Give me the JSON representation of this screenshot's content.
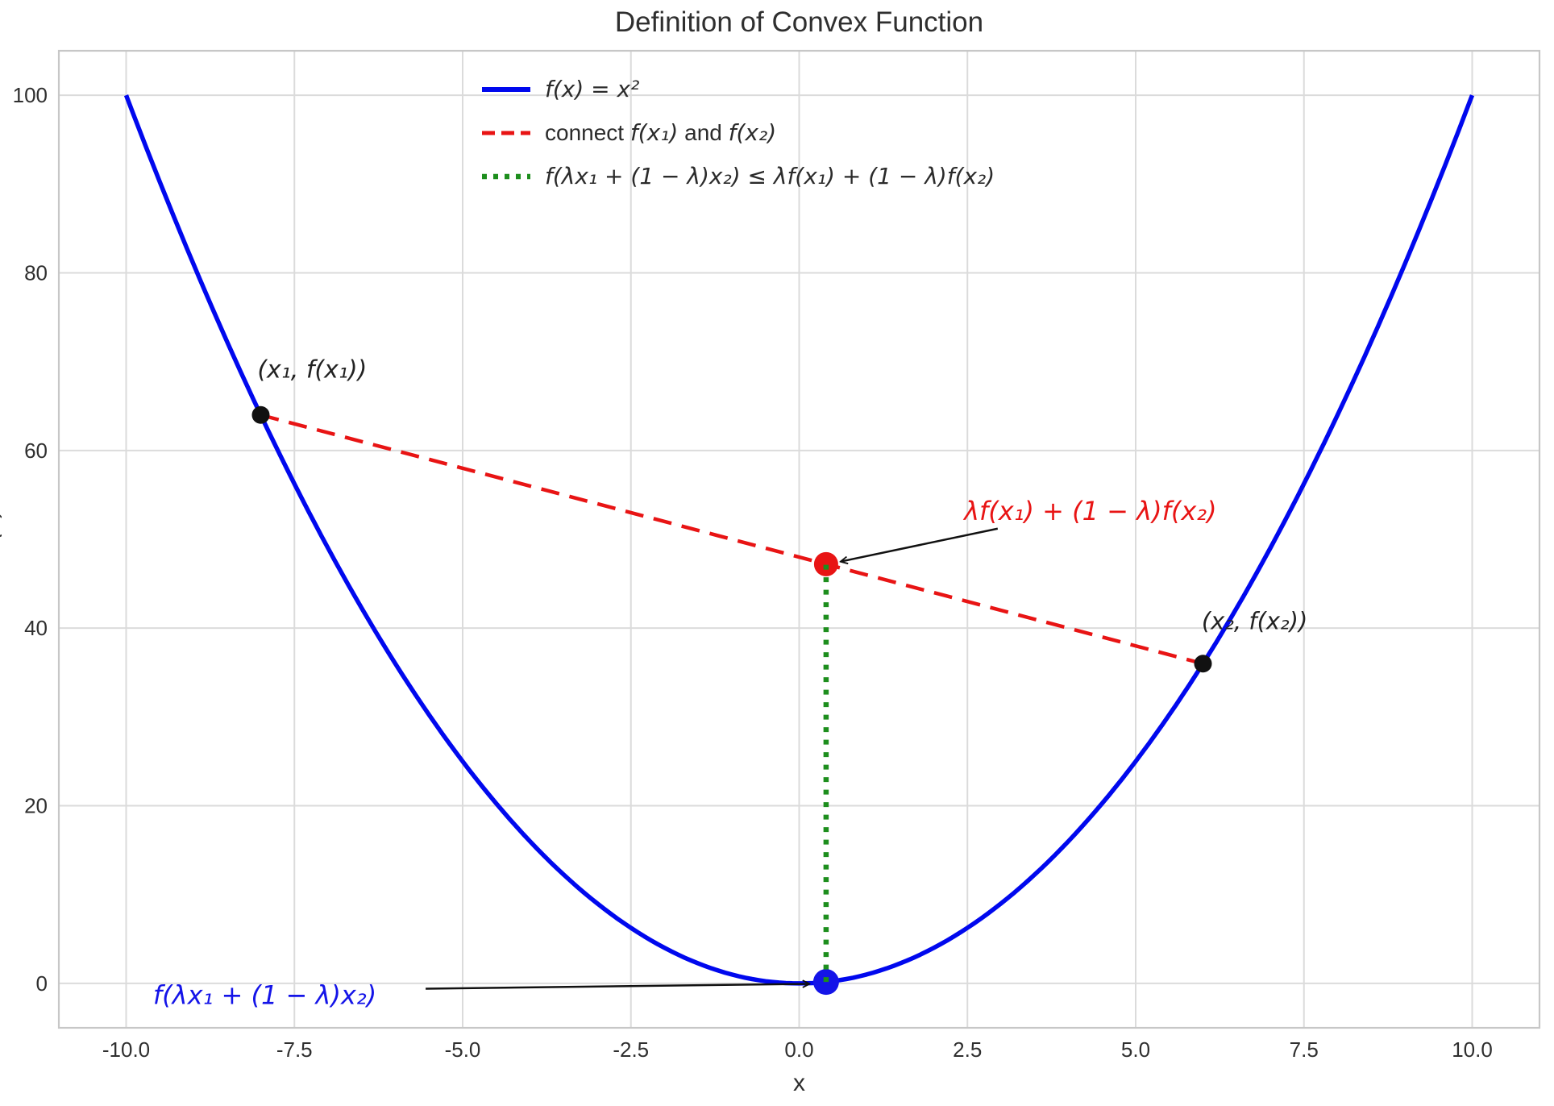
{
  "title": "Definition of Convex Function",
  "chart_data": {
    "type": "line",
    "title": "Definition of Convex Function",
    "xlabel": "x",
    "ylabel": "f(x)",
    "ylabel_mostly_clipped": true,
    "xlim": [
      -11,
      11
    ],
    "ylim": [
      -5,
      105
    ],
    "grid": true,
    "x_ticks": {
      "values": [
        -10,
        -7.5,
        -5,
        -2.5,
        0,
        2.5,
        5,
        7.5,
        10
      ],
      "labels": [
        "-10.0",
        "-7.5",
        "-5.0",
        "-2.5",
        "0.0",
        "2.5",
        "5.0",
        "7.5",
        "10.0"
      ]
    },
    "y_ticks": {
      "values": [
        0,
        20,
        40,
        60,
        80,
        100
      ],
      "labels": [
        "0",
        "20",
        "40",
        "60",
        "80",
        "100"
      ]
    },
    "colors": {
      "curve": "#0008ee",
      "secant": "#e81414",
      "interp": "#1d8e1d",
      "black_marker": "#111111",
      "blue_marker": "#1414e8",
      "grid": "#dbdbdb",
      "spine": "#c7c7c7",
      "text": "#2f2f2f",
      "arrow": "#111111"
    },
    "function_series": {
      "name": "f(x) = x²",
      "expr": "x^2",
      "x_min": -10,
      "x_max": 10,
      "width": 5.5
    },
    "x1": -8,
    "fx1": 64,
    "x2": 6,
    "fx2": 36,
    "lambda": 0.4,
    "segments": [
      {
        "name": "secant-line",
        "points": [
          [
            -8,
            64
          ],
          [
            6,
            36
          ]
        ],
        "color": "#e81414",
        "dash": "23 13",
        "width": 4.5,
        "layer": "below-markers"
      },
      {
        "name": "interpolation-line",
        "points": [
          [
            0.4,
            0.16
          ],
          [
            0.4,
            47.2
          ]
        ],
        "color": "#1d8e1d",
        "dash": "6 9.5",
        "width": 6.5,
        "layer": "above-markers"
      }
    ],
    "markers": [
      {
        "name": "point-x1",
        "x": -8,
        "y": 64,
        "r": 11,
        "color": "#111111"
      },
      {
        "name": "point-x2",
        "x": 6,
        "y": 36,
        "r": 11,
        "color": "#111111"
      },
      {
        "name": "point-chord-interp",
        "x": 0.4,
        "y": 47.2,
        "r": 15,
        "color": "#e81414"
      },
      {
        "name": "point-curve-interp",
        "x": 0.4,
        "y": 0.16,
        "r": 16,
        "color": "#1414e8"
      }
    ],
    "point_labels": [
      {
        "name": "label-x1",
        "x": -8.05,
        "y": 68.2,
        "size": 30,
        "color": "#222222",
        "parts": [
          {
            "t": "(x₁, f(x₁))",
            "i": true
          }
        ]
      },
      {
        "name": "label-x2",
        "x": 5.98,
        "y": 39.9,
        "size": 29,
        "color": "#222222",
        "parts": [
          {
            "t": "(x₂, f(x₂))",
            "i": true
          }
        ]
      }
    ],
    "annotations": [
      {
        "name": "annotation-upper-bound",
        "x": 2.45,
        "y": 52.2,
        "size": 32,
        "color": "#e81414",
        "parts": [
          {
            "t": "λf(x₁) + (1 − λ)f(x₂)",
            "i": true
          }
        ],
        "arrow_from": [
          2.95,
          51.2
        ],
        "arrow_to": [
          0.62,
          47.5
        ]
      },
      {
        "name": "annotation-lower-bound",
        "x": -9.6,
        "y": -2.3,
        "size": 32,
        "color": "#1414e8",
        "parts": [
          {
            "t": "f(λx₁ + (1 − λ)x₂)",
            "i": true
          }
        ],
        "arrow_from": [
          -5.55,
          -0.6
        ],
        "arrow_to": [
          0.15,
          -0.05
        ]
      }
    ],
    "legend": {
      "position": "upper-center-left",
      "entries": [
        {
          "swatch": "solid",
          "color": "#0008ee",
          "parts": [
            {
              "t": "f(x) = x²",
              "i": true
            }
          ]
        },
        {
          "swatch": "dashed",
          "color": "#e81414",
          "parts": [
            {
              "t": "connect ",
              "i": false
            },
            {
              "t": "f(x₁)",
              "i": true
            },
            {
              "t": " and ",
              "i": false
            },
            {
              "t": "f(x₂)",
              "i": true
            }
          ]
        },
        {
          "swatch": "dotted",
          "color": "#1d8e1d",
          "parts": [
            {
              "t": "f(λx₁ + (1 − λ)x₂) ≤ λf(x₁) + (1 − λ)f(x₂)",
              "i": true
            }
          ]
        }
      ]
    }
  }
}
